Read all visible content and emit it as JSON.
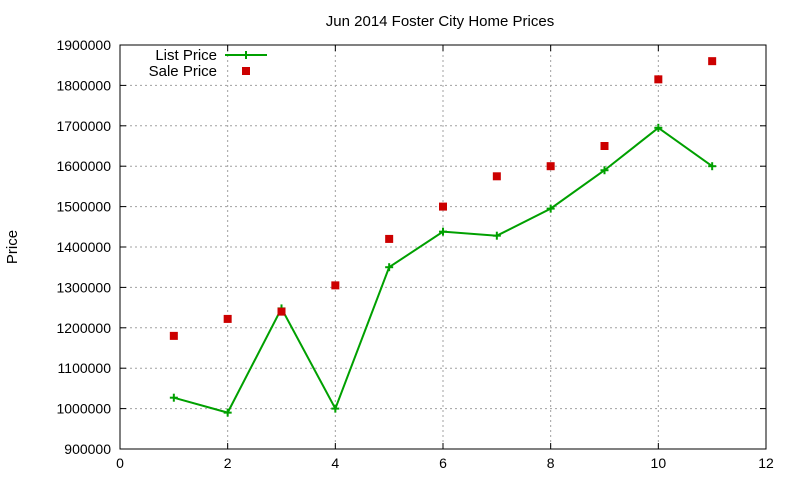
{
  "chart_data": {
    "type": "line",
    "title": "Jun 2014 Foster City Home Prices",
    "xlabel": "",
    "ylabel": "Price",
    "xlim": [
      0,
      12
    ],
    "ylim": [
      900000,
      1900000
    ],
    "x_ticks": [
      0,
      2,
      4,
      6,
      8,
      10,
      12
    ],
    "y_ticks": [
      900000,
      1000000,
      1100000,
      1200000,
      1300000,
      1400000,
      1500000,
      1600000,
      1700000,
      1800000,
      1900000
    ],
    "grid": true,
    "legend_position": "top-left",
    "series": [
      {
        "name": "List Price",
        "style": "linespoints",
        "marker": "plus",
        "color": "#00a000",
        "x": [
          1,
          2,
          3,
          4,
          5,
          6,
          7,
          8,
          9,
          10,
          11
        ],
        "y": [
          1027000,
          990000,
          1248000,
          1000000,
          1350000,
          1438000,
          1428000,
          1495000,
          1590000,
          1695000,
          1600000
        ]
      },
      {
        "name": "Sale Price",
        "style": "points",
        "marker": "square",
        "color": "#cc0000",
        "x": [
          1,
          2,
          3,
          4,
          5,
          6,
          7,
          8,
          9,
          10,
          11
        ],
        "y": [
          1180000,
          1222000,
          1240000,
          1305000,
          1420000,
          1500000,
          1575000,
          1600000,
          1650000,
          1815000,
          1860000
        ]
      }
    ]
  }
}
